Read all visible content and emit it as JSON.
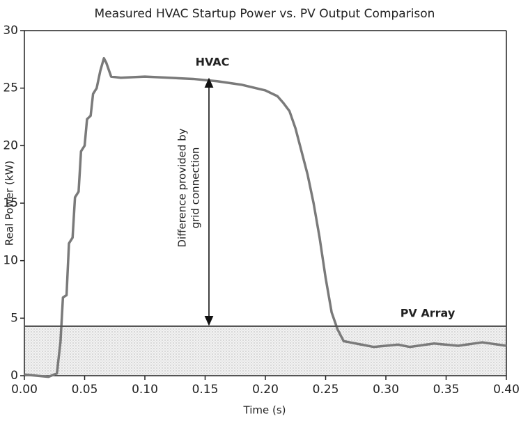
{
  "chart_data": {
    "type": "line",
    "title": "Measured HVAC Startup Power vs. PV Output Comparison",
    "x_label": "Time (s)",
    "y_label": "Real Power (kW)",
    "xlim": [
      0,
      0.4
    ],
    "ylim": [
      0,
      30
    ],
    "xticks": [
      {
        "value": 0,
        "label": "0.00"
      },
      0.05,
      {
        "value": 0.1,
        "label": "0.10"
      },
      0.15,
      {
        "value": 0.2,
        "label": "0.20"
      },
      0.25,
      {
        "value": 0.3,
        "label": "0.30"
      },
      0.35,
      {
        "value": 0.4,
        "label": "0.40"
      }
    ],
    "yticks": [
      0,
      5,
      10,
      15,
      20,
      25,
      30
    ],
    "annotations": [
      "HVAC",
      "PV Array",
      "Difference provided by",
      "grid connection"
    ],
    "series": [
      {
        "name": "HVAC",
        "color": "#7a7a7a",
        "x": [
          0,
          0.01,
          0.02,
          0.027,
          0.03,
          0.032,
          0.035,
          0.037,
          0.04,
          0.042,
          0.045,
          0.047,
          0.05,
          0.052,
          0.055,
          0.057,
          0.06,
          0.063,
          0.066,
          0.068,
          0.072,
          0.08,
          0.1,
          0.12,
          0.14,
          0.16,
          0.18,
          0.2,
          0.21,
          0.215,
          0.22,
          0.225,
          0.23,
          0.235,
          0.24,
          0.245,
          0.25,
          0.255,
          0.26,
          0.265,
          0.27,
          0.28,
          0.29,
          0.3,
          0.31,
          0.32,
          0.34,
          0.36,
          0.38,
          0.4
        ],
        "values": [
          0.1,
          0,
          -0.1,
          0.2,
          3,
          6.8,
          7,
          11.5,
          12,
          15.5,
          16,
          19.5,
          20,
          22.3,
          22.6,
          24.5,
          25,
          26.5,
          27.6,
          27.2,
          26,
          25.9,
          26,
          25.9,
          25.8,
          25.6,
          25.3,
          24.8,
          24.3,
          23.7,
          23,
          21.5,
          19.5,
          17.5,
          15,
          12,
          8.5,
          5.5,
          4,
          3,
          2.9,
          2.7,
          2.5,
          2.6,
          2.7,
          2.5,
          2.8,
          2.6,
          2.9,
          2.6
        ]
      },
      {
        "name": "PV Array",
        "color": "#555555",
        "x": [
          0,
          0.4
        ],
        "values": [
          4.3,
          4.3
        ]
      }
    ]
  }
}
